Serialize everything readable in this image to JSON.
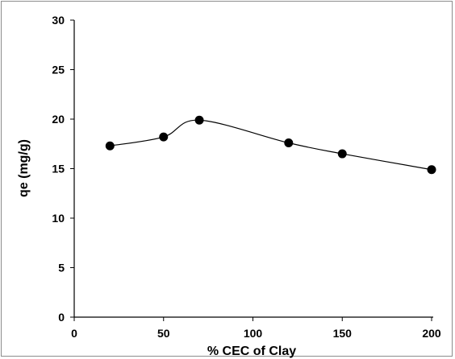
{
  "chart_data": {
    "type": "line",
    "xlabel": "% CEC of Clay",
    "ylabel": "qe (mg/g)",
    "xlim": [
      0,
      200
    ],
    "ylim": [
      0,
      30
    ],
    "x_ticks": [
      0,
      50,
      100,
      150,
      200
    ],
    "y_ticks": [
      0,
      5,
      10,
      15,
      20,
      25,
      30
    ],
    "x_tick_labels": [
      "0",
      "50",
      "100",
      "150",
      "200"
    ],
    "y_tick_labels": [
      "0",
      "5",
      "10",
      "15",
      "20",
      "25",
      "30"
    ],
    "grid": false,
    "legend": "none",
    "smooth": true,
    "series": [
      {
        "x": [
          20,
          50,
          70,
          120,
          150,
          200
        ],
        "y": [
          17.3,
          18.2,
          19.9,
          17.6,
          16.5,
          14.9
        ]
      }
    ],
    "colors": {
      "line": "#000000",
      "marker": "#000000",
      "axis": "#000000",
      "border": "#8c8c8c"
    }
  }
}
